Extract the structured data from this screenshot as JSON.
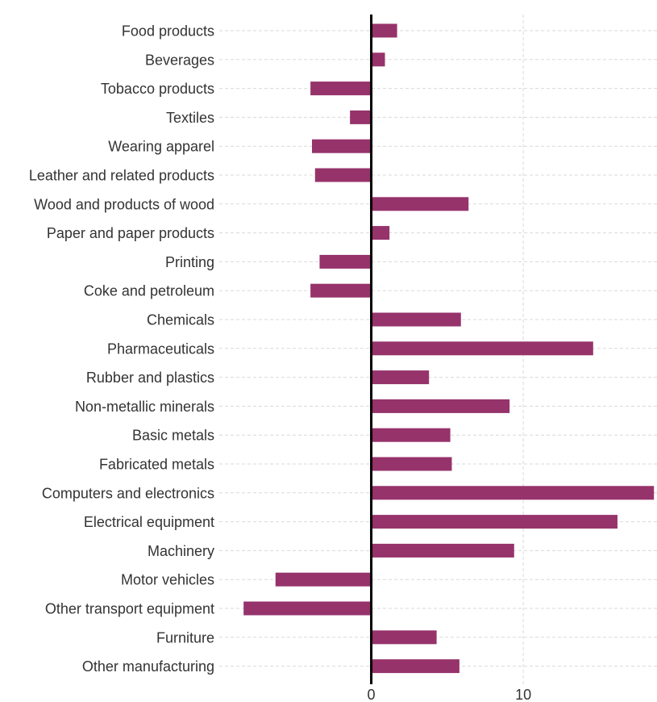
{
  "chart_data": {
    "type": "bar",
    "orientation": "horizontal",
    "title": "",
    "xlabel": "",
    "ylabel": "",
    "categories": [
      "Food products",
      "Beverages",
      "Tobacco products",
      "Textiles",
      "Wearing apparel",
      "Leather and related products",
      "Wood and products of wood",
      "Paper and paper products",
      "Printing",
      "Coke and petroleum",
      "Chemicals",
      "Pharmaceuticals",
      "Rubber and plastics",
      "Non-metallic minerals",
      "Basic metals",
      "Fabricated metals",
      "Computers and electronics",
      "Electrical equipment",
      "Machinery",
      "Motor vehicles",
      "Other transport equipment",
      "Furniture",
      "Other manufacturing"
    ],
    "values": [
      1.7,
      0.9,
      -4.0,
      -1.4,
      -3.9,
      -3.7,
      6.4,
      1.2,
      -3.4,
      -4.0,
      5.9,
      14.6,
      3.8,
      9.1,
      5.2,
      5.3,
      18.6,
      16.2,
      9.4,
      -6.3,
      -8.4,
      4.3,
      5.8
    ],
    "xlim": [
      -10.0,
      18.8
    ],
    "xticks": [
      0,
      10
    ],
    "xtick_labels": [
      "0",
      "10"
    ],
    "grid": true,
    "colors": {
      "bar": "#96336b",
      "zero_line": "#000000",
      "grid": "#d9d9d9",
      "text": "#333333"
    }
  }
}
